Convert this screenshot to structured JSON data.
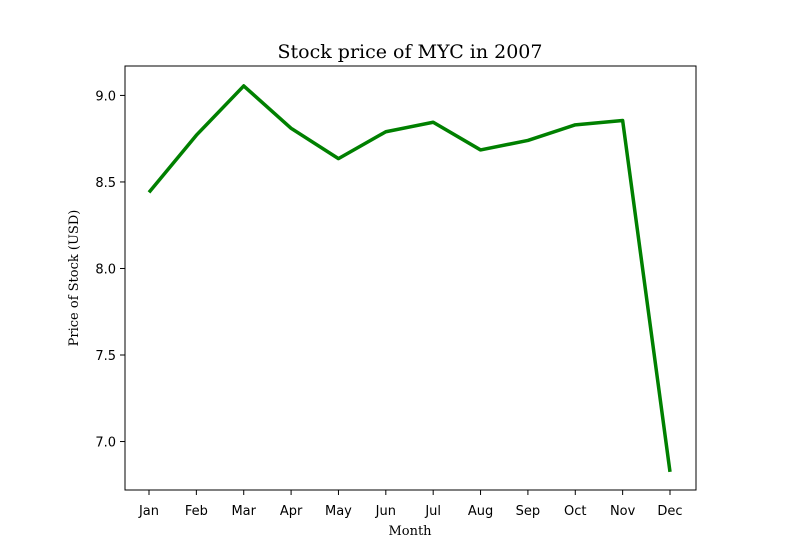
{
  "chart_data": {
    "type": "line",
    "title": "Stock price of MYC in 2007",
    "xlabel": "Month",
    "ylabel": "Price of Stock (USD)",
    "categories": [
      "Jan",
      "Feb",
      "Mar",
      "Apr",
      "May",
      "Jun",
      "Jul",
      "Aug",
      "Sep",
      "Oct",
      "Nov",
      "Dec"
    ],
    "series": [
      {
        "values": [
          8.44,
          8.77,
          9.055,
          8.81,
          8.635,
          8.79,
          8.845,
          8.685,
          8.74,
          8.83,
          8.855,
          6.825
        ],
        "color": "#008000"
      }
    ],
    "ylim": [
      6.72,
      9.17
    ],
    "yticks": [
      7.0,
      7.5,
      8.0,
      8.5,
      9.0
    ],
    "ytick_labels": [
      "7.0",
      "7.5",
      "8.0",
      "8.5",
      "9.0"
    ],
    "grid": false,
    "legend": "none"
  }
}
